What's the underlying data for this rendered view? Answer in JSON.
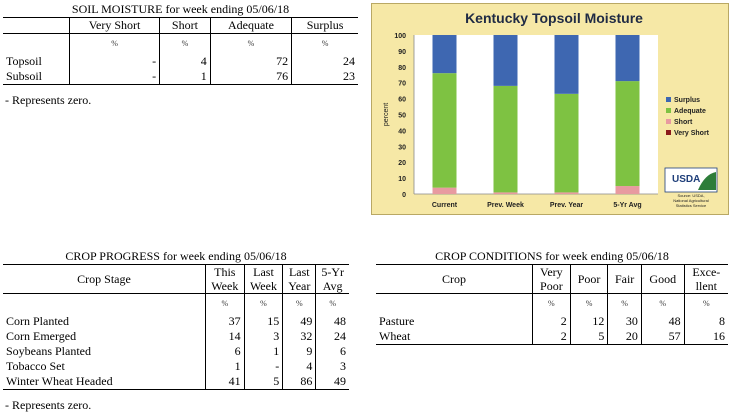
{
  "soil": {
    "title": "SOIL MOISTURE for week ending 05/06/18",
    "columns": [
      "Very Short",
      "Short",
      "Adequate",
      "Surplus"
    ],
    "unit": "%",
    "rows": [
      {
        "label": "Topsoil",
        "values": [
          "-",
          "4",
          "72",
          "24"
        ]
      },
      {
        "label": "Subsoil",
        "values": [
          "-",
          "1",
          "76",
          "23"
        ]
      }
    ],
    "note": "- Represents zero."
  },
  "progress": {
    "title": "CROP PROGRESS for week ending 05/06/18",
    "stage_header": "Crop Stage",
    "columns": [
      {
        "line1": "This",
        "line2": "Week"
      },
      {
        "line1": "Last",
        "line2": "Week"
      },
      {
        "line1": "Last",
        "line2": "Year"
      },
      {
        "line1": "5-Yr",
        "line2": "Avg"
      }
    ],
    "unit": "%",
    "rows": [
      {
        "label": "Corn Planted",
        "values": [
          "37",
          "15",
          "49",
          "48"
        ]
      },
      {
        "label": "Corn Emerged",
        "values": [
          "14",
          "3",
          "32",
          "24"
        ]
      },
      {
        "label": "Soybeans Planted",
        "values": [
          "6",
          "1",
          "9",
          "6"
        ]
      },
      {
        "label": "Tobacco Set",
        "values": [
          "1",
          "-",
          "4",
          "3"
        ]
      },
      {
        "label": "Winter Wheat Headed",
        "values": [
          "41",
          "5",
          "86",
          "49"
        ]
      }
    ],
    "note": "- Represents zero."
  },
  "conditions": {
    "title": "CROP CONDITIONS for week ending 05/06/18",
    "crop_header": "Crop",
    "columns": [
      {
        "line1": "Very",
        "line2": "Poor"
      },
      {
        "line1": "Poor",
        "line2": ""
      },
      {
        "line1": "Fair",
        "line2": ""
      },
      {
        "line1": "Good",
        "line2": ""
      },
      {
        "line1": "Exce-",
        "line2": "llent"
      }
    ],
    "unit": "%",
    "rows": [
      {
        "label": "Pasture",
        "values": [
          "2",
          "12",
          "30",
          "48",
          "8"
        ]
      },
      {
        "label": "Wheat",
        "values": [
          "2",
          "5",
          "20",
          "57",
          "16"
        ]
      }
    ]
  },
  "chart_data": {
    "type": "bar",
    "stacked": true,
    "title": "Kentucky Topsoil Moisture",
    "xlabel": "",
    "ylabel": "percent",
    "ylim": [
      0,
      100
    ],
    "yticks": [
      0,
      10,
      20,
      30,
      40,
      50,
      60,
      70,
      80,
      90,
      100
    ],
    "grid": false,
    "legend_position": "right",
    "categories": [
      "Current",
      "Prev. Week",
      "Prev. Year",
      "5-Yr Avg"
    ],
    "series": [
      {
        "name": "Very Short",
        "values": [
          0,
          0,
          0,
          0
        ],
        "color": "#8b1a1a"
      },
      {
        "name": "Short",
        "values": [
          4,
          1,
          1,
          5
        ],
        "color": "#e89aa0"
      },
      {
        "name": "Adequate",
        "values": [
          72,
          67,
          62,
          66
        ],
        "color": "#7ec242"
      },
      {
        "name": "Surplus",
        "values": [
          24,
          32,
          37,
          29
        ],
        "color": "#3e67b1"
      }
    ],
    "logo": {
      "text": "USDA",
      "source_lines": [
        "Source: USDA,",
        "National Agricultural",
        "Statistics Service"
      ]
    }
  }
}
